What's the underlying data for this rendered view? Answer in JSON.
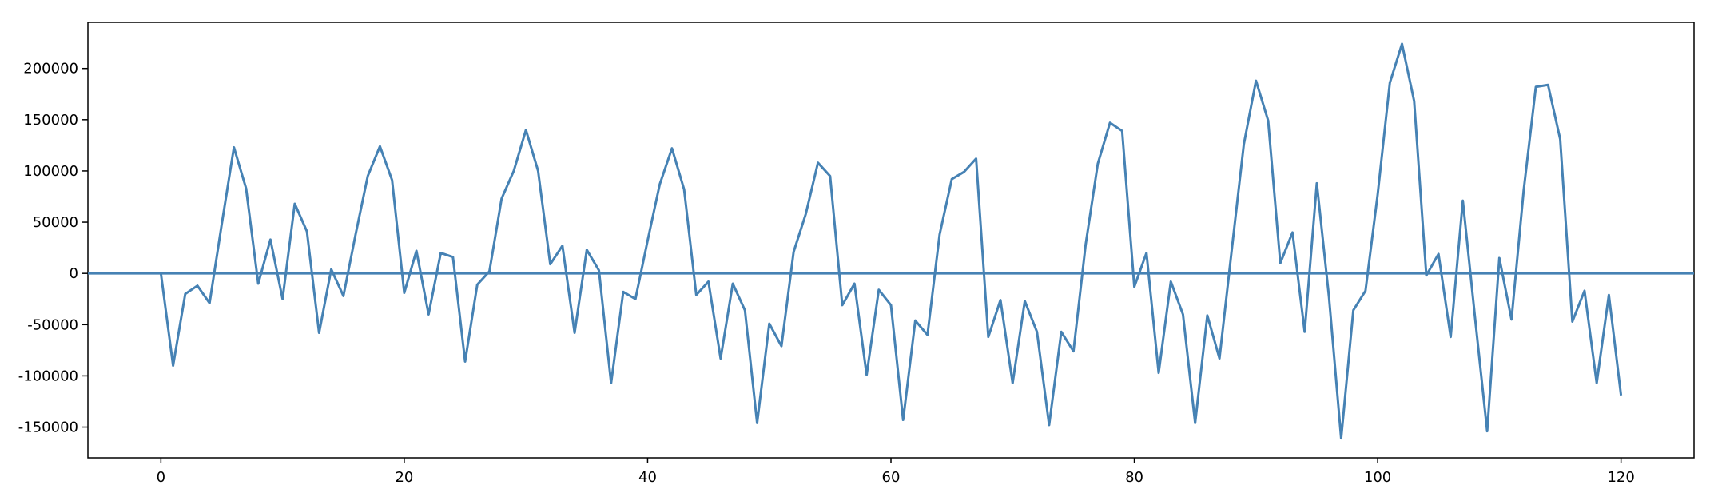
{
  "chart_data": {
    "type": "line",
    "title": "",
    "xlabel": "",
    "ylabel": "",
    "xlim": [
      -6,
      126
    ],
    "ylim": [
      -180000,
      245000
    ],
    "xticks": [
      0,
      20,
      40,
      60,
      80,
      100,
      120
    ],
    "yticks": [
      -150000,
      -100000,
      -50000,
      0,
      50000,
      100000,
      150000,
      200000
    ],
    "grid": false,
    "legend": "none",
    "colors": {
      "series": "#4682b4",
      "axis": "#000000"
    },
    "hline": {
      "y": 0
    },
    "series": [
      {
        "x": [
          0,
          1,
          2,
          3,
          4,
          5,
          6,
          7,
          8,
          9,
          10,
          11,
          12,
          13,
          14,
          15,
          16,
          17,
          18,
          19,
          20,
          21,
          22,
          23,
          24,
          25,
          26,
          27,
          28,
          29,
          30,
          31,
          32,
          33,
          34,
          35,
          36,
          37,
          38,
          39,
          40,
          41,
          42,
          43,
          44,
          45,
          46,
          47,
          48,
          49,
          50,
          51,
          52,
          53,
          54,
          55,
          56,
          57,
          58,
          59,
          60,
          61,
          62,
          63,
          64,
          65,
          66,
          67,
          68,
          69,
          70,
          71,
          72,
          73,
          74,
          75,
          76,
          77,
          78,
          79,
          80,
          81,
          82,
          83,
          84,
          85,
          86,
          87,
          88,
          89,
          90,
          91,
          92,
          93,
          94,
          95,
          96,
          97,
          98,
          99,
          100,
          101,
          102,
          103,
          104,
          105,
          106,
          107,
          108,
          109,
          110,
          111,
          112,
          113,
          114,
          115,
          116,
          117,
          118,
          119,
          120
        ],
        "y": [
          0,
          -90000,
          -20000,
          -12000,
          -29000,
          48000,
          123000,
          83000,
          -10000,
          33000,
          -25000,
          68000,
          41000,
          -58000,
          4000,
          -22000,
          38000,
          95000,
          124000,
          91000,
          -19000,
          22000,
          -40000,
          20000,
          16000,
          -86000,
          -11000,
          2000,
          73000,
          100000,
          140000,
          100000,
          9000,
          27000,
          -58000,
          23000,
          3000,
          -107000,
          -18000,
          -25000,
          32000,
          87000,
          122000,
          82000,
          -21000,
          -8000,
          -83000,
          -10000,
          -36000,
          -146000,
          -49000,
          -71000,
          21000,
          58000,
          108000,
          95000,
          -31000,
          -10000,
          -99000,
          -16000,
          -31000,
          -143000,
          -46000,
          -60000,
          38000,
          92000,
          99000,
          112000,
          -62000,
          -26000,
          -107000,
          -27000,
          -57000,
          -148000,
          -57000,
          -76000,
          28000,
          107000,
          147000,
          139000,
          -13000,
          20000,
          -97000,
          -8000,
          -40000,
          -146000,
          -41000,
          -83000,
          22000,
          126000,
          188000,
          149000,
          10000,
          40000,
          -57000,
          88000,
          -23000,
          -161000,
          -36000,
          -17000,
          77000,
          186000,
          224000,
          168000,
          -2000,
          19000,
          -62000,
          71000,
          -43000,
          -154000,
          15000,
          -45000,
          81000,
          182000,
          184000,
          131000,
          -47000,
          -17000,
          -107000,
          -21000,
          -119000
        ]
      }
    ]
  }
}
